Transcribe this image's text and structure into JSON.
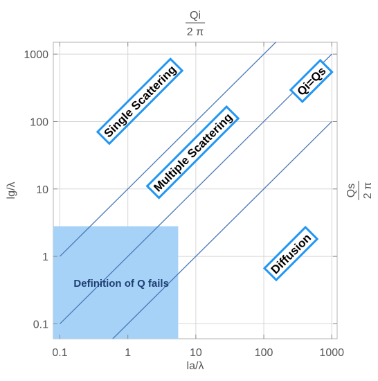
{
  "chart_data": {
    "type": "line",
    "x_scale": "log",
    "y_scale": "log",
    "xlim": [
      0.08,
      1200
    ],
    "ylim": [
      0.06,
      1500
    ],
    "xlabel": "la/λ",
    "ylabel": "lg/λ",
    "top_axis_label": {
      "numerator": "Qi",
      "denominator": "2 π"
    },
    "right_axis_label": {
      "numerator": "Qs",
      "denominator": "2 π"
    },
    "x_ticks": [
      {
        "value": 0.1,
        "label": "0.1"
      },
      {
        "value": 1,
        "label": "1"
      },
      {
        "value": 10,
        "label": "10"
      },
      {
        "value": 100,
        "label": "100"
      },
      {
        "value": 1000,
        "label": "1000"
      }
    ],
    "y_ticks": [
      {
        "value": 0.1,
        "label": "0.1"
      },
      {
        "value": 1,
        "label": "1"
      },
      {
        "value": 10,
        "label": "10"
      },
      {
        "value": 100,
        "label": "100"
      },
      {
        "value": 1000,
        "label": "1000"
      }
    ],
    "grid": true,
    "series": [
      {
        "x": [
          0.1,
          160
        ],
        "y": [
          1,
          1600
        ]
      },
      {
        "x": [
          0.1,
          1000
        ],
        "y": [
          0.1,
          1000
        ]
      },
      {
        "x": [
          0.6,
          1000
        ],
        "y": [
          0.06,
          100
        ]
      }
    ],
    "line_color": "#4a78b8",
    "region": {
      "x_range": [
        0.08,
        5.5
      ],
      "y_range": [
        0.06,
        2.8
      ],
      "color": "#a6d2f7",
      "label": "Definition of Q fails",
      "label_anchor": [
        0.8,
        0.4
      ]
    },
    "annotations": [
      {
        "text": "Single Scattering",
        "x": 1.5,
        "y": 200
      },
      {
        "text": "Multiple Scattering",
        "x": 9,
        "y": 35
      },
      {
        "text": "Qi=Qs",
        "x": 500,
        "y": 400
      },
      {
        "text": "Diffusion",
        "x": 250,
        "y": 1.1
      }
    ],
    "annotation_box_color": "#2196f3"
  }
}
